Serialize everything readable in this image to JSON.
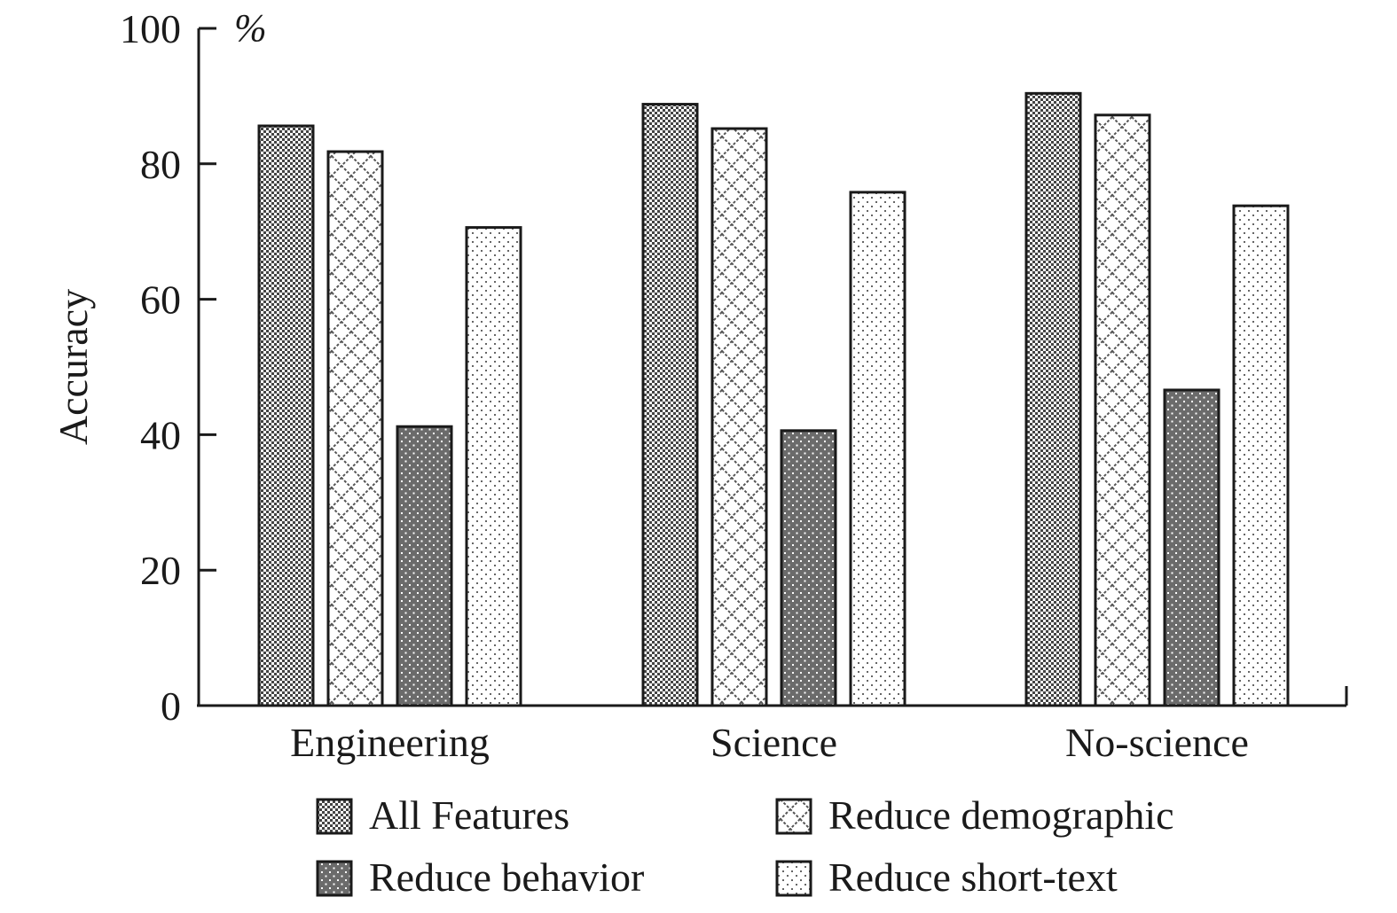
{
  "chart_data": {
    "type": "bar",
    "title": "",
    "xlabel": "",
    "ylabel": "Accuracy",
    "y_unit": "%",
    "ylim": [
      0,
      100
    ],
    "yticks": [
      0,
      20,
      40,
      60,
      80,
      100
    ],
    "grid": false,
    "legend_position": "bottom",
    "categories": [
      "Engineering",
      "Science",
      "No-science"
    ],
    "series": [
      {
        "name": "All Features",
        "pattern": "dense-checker",
        "values": [
          85.6,
          88.8,
          90.4
        ]
      },
      {
        "name": "Reduce demographic",
        "pattern": "crosshatch",
        "values": [
          81.8,
          85.2,
          87.2
        ]
      },
      {
        "name": "Reduce behavior",
        "pattern": "dark-dotted",
        "values": [
          41.2,
          40.6,
          46.6
        ]
      },
      {
        "name": "Reduce short-text",
        "pattern": "sparse-dotted",
        "values": [
          70.6,
          75.8,
          73.8
        ]
      }
    ]
  }
}
